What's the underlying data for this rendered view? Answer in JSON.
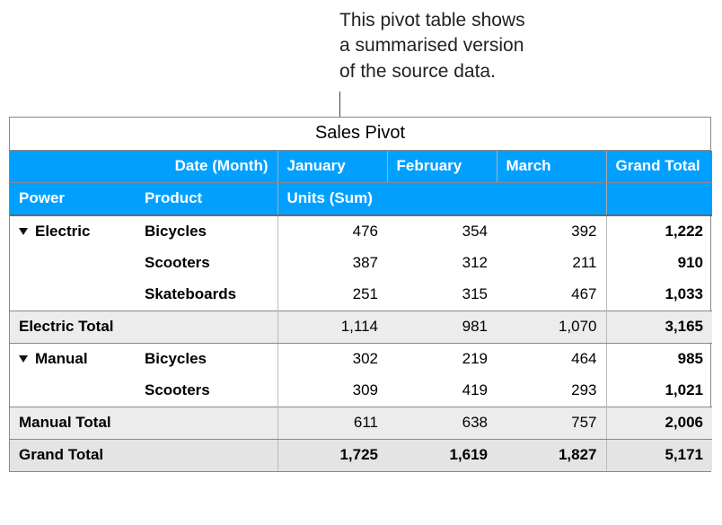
{
  "callout": {
    "line1": "This pivot table shows",
    "line2": "a summarised version",
    "line3": "of the source data."
  },
  "table": {
    "title": "Sales Pivot",
    "header1": {
      "date_month": "Date (Month)",
      "months": [
        "January",
        "February",
        "March"
      ],
      "grand_total": "Grand Total"
    },
    "header2": {
      "power": "Power",
      "product": "Product",
      "units_sum": "Units (Sum)"
    },
    "colors": {
      "header_bg": "#02a0fe",
      "header_fg": "#ffffff",
      "subtotal_bg": "#ececec",
      "grand_bg": "#e4e4e4",
      "border": "#888888"
    },
    "groups": [
      {
        "name": "Electric",
        "rows": [
          {
            "product": "Bicycles",
            "values": [
              "476",
              "354",
              "392"
            ],
            "total": "1,222"
          },
          {
            "product": "Scooters",
            "values": [
              "387",
              "312",
              "211"
            ],
            "total": "910"
          },
          {
            "product": "Skateboards",
            "values": [
              "251",
              "315",
              "467"
            ],
            "total": "1,033"
          }
        ],
        "subtotal_label": "Electric Total",
        "subtotal": {
          "values": [
            "1,114",
            "981",
            "1,070"
          ],
          "total": "3,165"
        }
      },
      {
        "name": "Manual",
        "rows": [
          {
            "product": "Bicycles",
            "values": [
              "302",
              "219",
              "464"
            ],
            "total": "985"
          },
          {
            "product": "Scooters",
            "values": [
              "309",
              "419",
              "293"
            ],
            "total": "1,021"
          }
        ],
        "subtotal_label": "Manual Total",
        "subtotal": {
          "values": [
            "611",
            "638",
            "757"
          ],
          "total": "2,006"
        }
      }
    ],
    "grand_total_row": {
      "label": "Grand Total",
      "values": [
        "1,725",
        "1,619",
        "1,827"
      ],
      "total": "5,171"
    }
  }
}
